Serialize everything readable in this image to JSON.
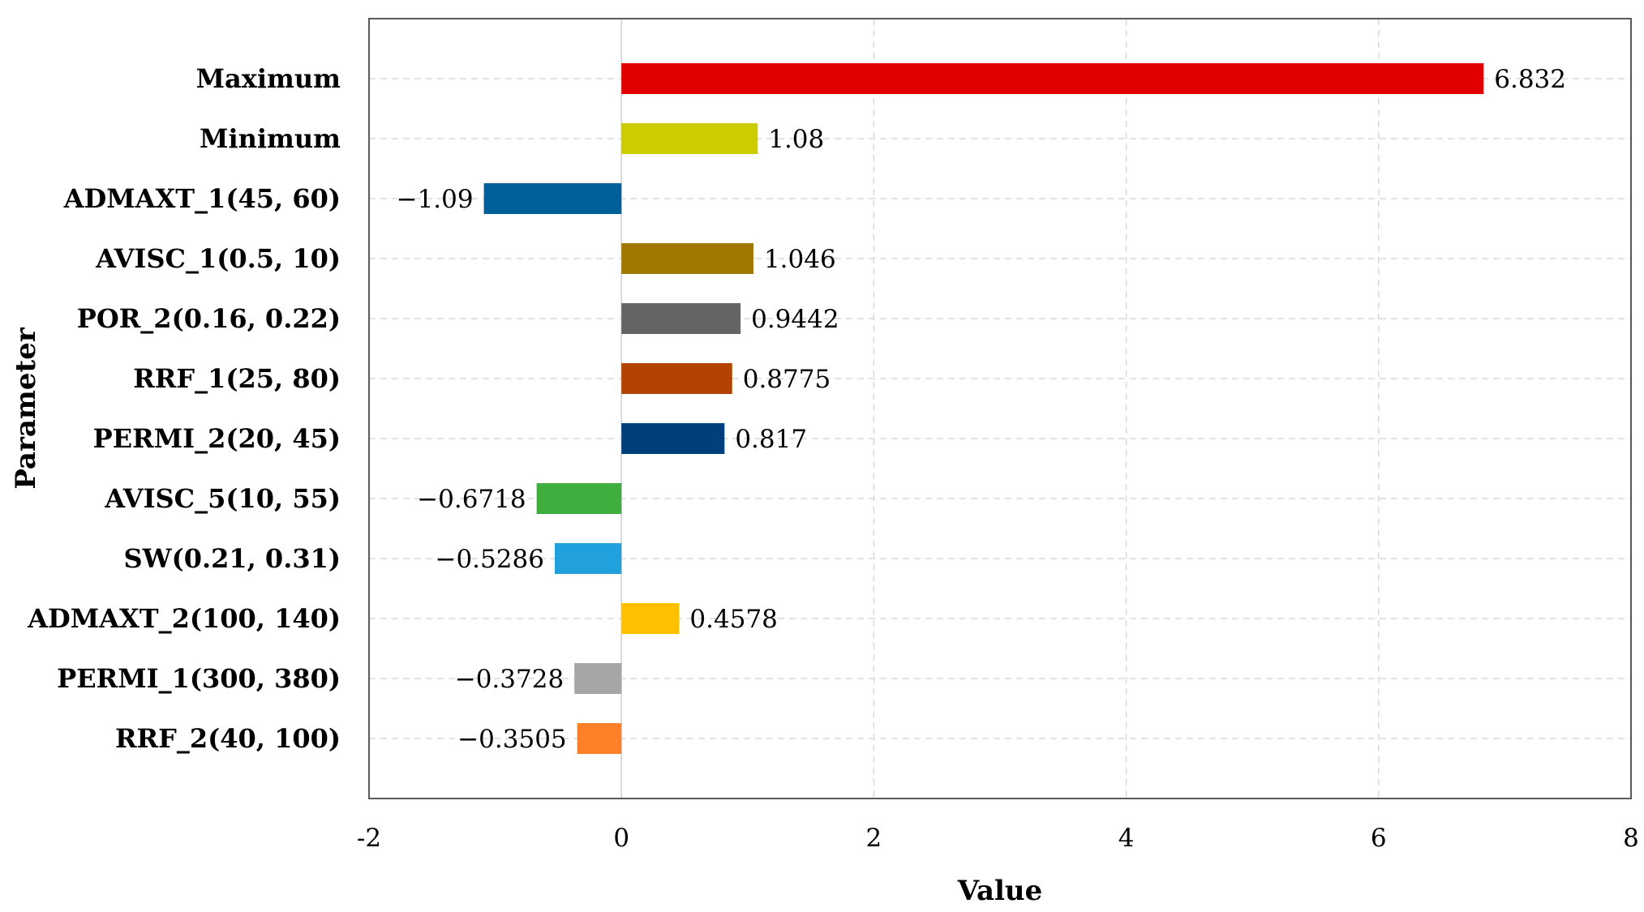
{
  "chart_data": {
    "type": "bar",
    "orientation": "horizontal",
    "title": "",
    "xlabel": "Value",
    "ylabel": "Parameter",
    "xlim": [
      -2,
      8
    ],
    "xticks": [
      -2,
      0,
      2,
      4,
      6,
      8
    ],
    "grid": true,
    "legend": "none",
    "categories": [
      "Maximum",
      "Minimum",
      "ADMAXT_1(45, 60)",
      "AVISC_1(0.5, 10)",
      "POR_2(0.16, 0.22)",
      "RRF_1(25, 80)",
      "PERMI_2(20, 45)",
      "AVISC_5(10, 55)",
      "SW(0.21, 0.31)",
      "ADMAXT_2(100, 140)",
      "PERMI_1(300, 380)",
      "RRF_2(40, 100)"
    ],
    "values": [
      6.832,
      1.08,
      -1.09,
      1.046,
      0.9442,
      0.8775,
      0.817,
      -0.6718,
      -0.5286,
      0.4578,
      -0.3728,
      -0.3505
    ],
    "value_labels": [
      "6.832",
      "1.08",
      "−1.09",
      "1.046",
      "0.9442",
      "0.8775",
      "0.817",
      "−0.6718",
      "−0.5286",
      "0.4578",
      "−0.3728",
      "−0.3505"
    ],
    "colors": [
      "#e00000",
      "#cccc00",
      "#00609a",
      "#a07800",
      "#646464",
      "#b24300",
      "#003f7c",
      "#3fae3f",
      "#20a0dc",
      "#ffc000",
      "#a6a6a6",
      "#ff8027"
    ]
  }
}
